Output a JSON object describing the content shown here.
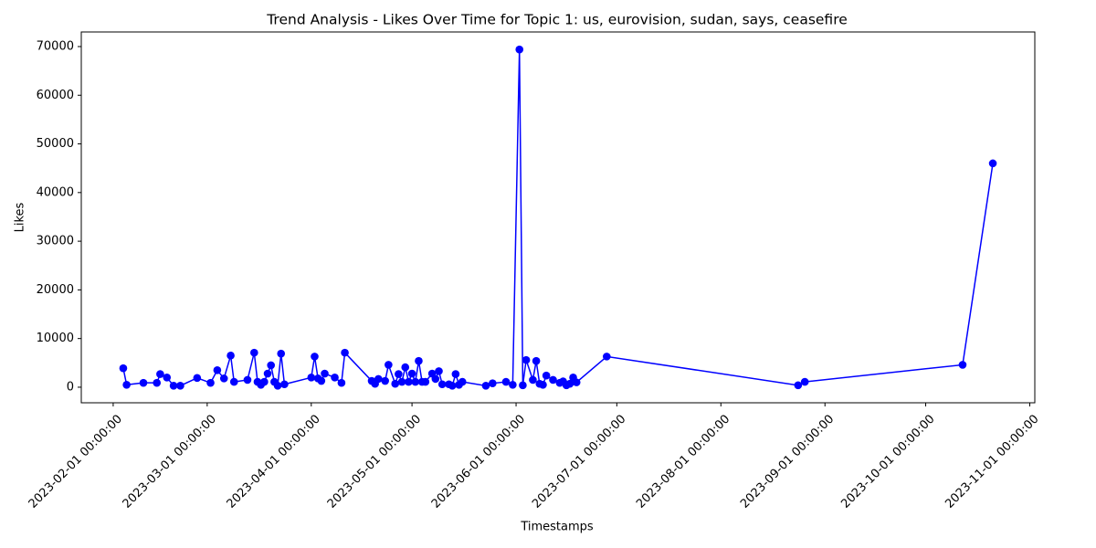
{
  "chart_data": {
    "type": "line",
    "title": "Trend Analysis - Likes Over Time for Topic 1: us, eurovision, sudan, says, ceasefire",
    "x_label": "Timestamps",
    "y_label": "Likes",
    "x": [
      "2023-02-04",
      "2023-02-05",
      "2023-02-10",
      "2023-02-14",
      "2023-02-15",
      "2023-02-17",
      "2023-02-19",
      "2023-02-21",
      "2023-02-26",
      "2023-03-02",
      "2023-03-04",
      "2023-03-06",
      "2023-03-08",
      "2023-03-09",
      "2023-03-13",
      "2023-03-15",
      "2023-03-16",
      "2023-03-17",
      "2023-03-18",
      "2023-03-19",
      "2023-03-20",
      "2023-03-21",
      "2023-03-22",
      "2023-03-23",
      "2023-03-24",
      "2023-04-01",
      "2023-04-02",
      "2023-04-03",
      "2023-04-04",
      "2023-04-05",
      "2023-04-08",
      "2023-04-10",
      "2023-04-11",
      "2023-04-19",
      "2023-04-20",
      "2023-04-21",
      "2023-04-23",
      "2023-04-24",
      "2023-04-26",
      "2023-04-27",
      "2023-04-28",
      "2023-04-29",
      "2023-04-30",
      "2023-05-01",
      "2023-05-02",
      "2023-05-03",
      "2023-05-04",
      "2023-05-05",
      "2023-05-07",
      "2023-05-08",
      "2023-05-09",
      "2023-05-10",
      "2023-05-12",
      "2023-05-13",
      "2023-05-14",
      "2023-05-15",
      "2023-05-16",
      "2023-05-23",
      "2023-05-25",
      "2023-05-29",
      "2023-05-31",
      "2023-06-02",
      "2023-06-03",
      "2023-06-04",
      "2023-06-06",
      "2023-06-07",
      "2023-06-08",
      "2023-06-09",
      "2023-06-10",
      "2023-06-12",
      "2023-06-14",
      "2023-06-15",
      "2023-06-16",
      "2023-06-17",
      "2023-06-18",
      "2023-06-19",
      "2023-06-28",
      "2023-08-24",
      "2023-08-26",
      "2023-10-12",
      "2023-10-21"
    ],
    "series": [
      {
        "name": "Likes",
        "color": "#0000ff",
        "values": [
          3900,
          500,
          900,
          900,
          2700,
          2000,
          300,
          300,
          1900,
          900,
          3500,
          1800,
          6500,
          1100,
          1500,
          7100,
          1100,
          500,
          1100,
          2800,
          4500,
          1100,
          300,
          6900,
          600,
          2000,
          6300,
          1800,
          1300,
          2800,
          2000,
          900,
          7100,
          1300,
          700,
          1700,
          1300,
          4600,
          700,
          2700,
          1100,
          4100,
          1100,
          2800,
          1100,
          5400,
          1100,
          1100,
          2800,
          1700,
          3300,
          600,
          600,
          300,
          2700,
          500,
          1100,
          300,
          800,
          1100,
          500,
          69400,
          400,
          5600,
          1500,
          5400,
          700,
          500,
          2400,
          1500,
          900,
          1200,
          400,
          700,
          2000,
          1000,
          6300,
          400,
          1100,
          4600,
          46000
        ]
      }
    ],
    "xlim": [
      "2023-01-22 12:00:00",
      "2023-11-02 12:00:00"
    ],
    "xticks": [
      {
        "value": "2023-02-01",
        "label": "2023-02-01 00:00:00"
      },
      {
        "value": "2023-03-01",
        "label": "2023-03-01 00:00:00"
      },
      {
        "value": "2023-04-01",
        "label": "2023-04-01 00:00:00"
      },
      {
        "value": "2023-05-01",
        "label": "2023-05-01 00:00:00"
      },
      {
        "value": "2023-06-01",
        "label": "2023-06-01 00:00:00"
      },
      {
        "value": "2023-07-01",
        "label": "2023-07-01 00:00:00"
      },
      {
        "value": "2023-08-01",
        "label": "2023-08-01 00:00:00"
      },
      {
        "value": "2023-09-01",
        "label": "2023-09-01 00:00:00"
      },
      {
        "value": "2023-10-01",
        "label": "2023-10-01 00:00:00"
      },
      {
        "value": "2023-11-01",
        "label": "2023-11-01 00:00:00"
      }
    ],
    "ylim": [
      -3200,
      73000
    ],
    "yticks": [
      0,
      10000,
      20000,
      30000,
      40000,
      50000,
      60000,
      70000
    ],
    "grid": false,
    "marker": "circle"
  }
}
